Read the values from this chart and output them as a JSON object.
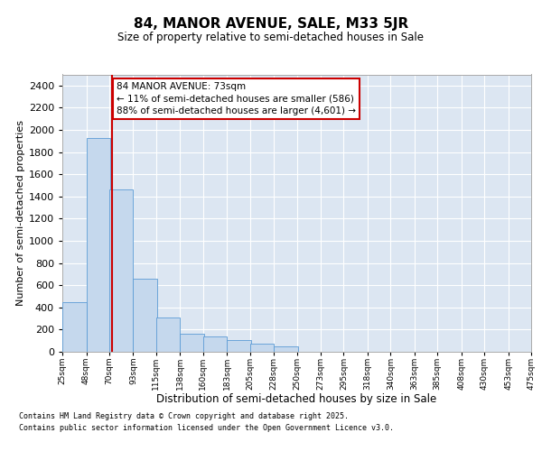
{
  "title": "84, MANOR AVENUE, SALE, M33 5JR",
  "subtitle": "Size of property relative to semi-detached houses in Sale",
  "xlabel": "Distribution of semi-detached houses by size in Sale",
  "ylabel": "Number of semi-detached properties",
  "property_size": 73,
  "property_label": "84 MANOR AVENUE: 73sqm",
  "pct_smaller": 11,
  "pct_larger": 88,
  "count_smaller": 586,
  "count_larger": 4601,
  "bar_color": "#c5d8ed",
  "bar_edge_color": "#5b9bd5",
  "vline_color": "#cc0000",
  "annotation_box_edgecolor": "#cc0000",
  "background_color": "#dce6f2",
  "grid_color": "#ffffff",
  "bins_left": [
    25,
    48,
    70,
    93,
    115,
    138,
    160,
    183,
    205,
    228,
    250,
    273,
    295,
    318,
    340,
    363,
    385,
    408,
    430,
    453
  ],
  "bin_width": 23,
  "last_edge": 475,
  "counts": [
    450,
    1930,
    1460,
    660,
    305,
    165,
    135,
    105,
    70,
    50,
    0,
    0,
    0,
    0,
    0,
    0,
    0,
    0,
    0,
    0
  ],
  "footer_line1": "Contains HM Land Registry data © Crown copyright and database right 2025.",
  "footer_line2": "Contains public sector information licensed under the Open Government Licence v3.0.",
  "ylim_max": 2500,
  "yticks": [
    0,
    200,
    400,
    600,
    800,
    1000,
    1200,
    1400,
    1600,
    1800,
    2000,
    2200,
    2400
  ],
  "fig_width": 6.0,
  "fig_height": 5.0,
  "dpi": 100
}
